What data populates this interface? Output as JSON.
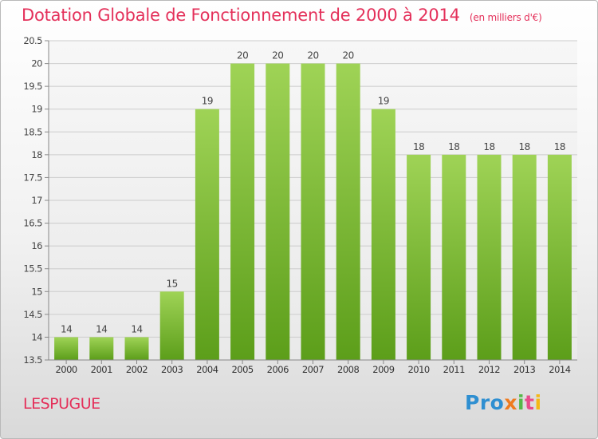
{
  "header": {
    "title": "Dotation Globale de Fonctionnement de 2000 à 2014",
    "unit": "(en milliers d'€)"
  },
  "footer": {
    "commune": "LESPUGUE",
    "logo": {
      "p1": "Pro",
      "p2": "x",
      "p3": "i",
      "p4": "t",
      "p5": "i"
    }
  },
  "colors": {
    "title": "#e4305a",
    "bar_light": "#9fd356",
    "bar_dark": "#5c9e1a",
    "gridline": "#cccccc"
  },
  "chart_data": {
    "type": "bar",
    "categories": [
      "2000",
      "2001",
      "2002",
      "2003",
      "2004",
      "2005",
      "2006",
      "2007",
      "2008",
      "2009",
      "2010",
      "2011",
      "2012",
      "2013",
      "2014"
    ],
    "values": [
      14,
      14,
      14,
      15,
      19,
      20,
      20,
      20,
      20,
      19,
      18,
      18,
      18,
      18,
      18
    ],
    "ylim": [
      13.5,
      20.5
    ],
    "yticks": [
      "13.5",
      "14",
      "14.5",
      "15",
      "15.5",
      "16",
      "16.5",
      "17",
      "17.5",
      "18",
      "18.5",
      "19",
      "19.5",
      "20",
      "20.5"
    ],
    "grid": true,
    "legend": "none"
  }
}
